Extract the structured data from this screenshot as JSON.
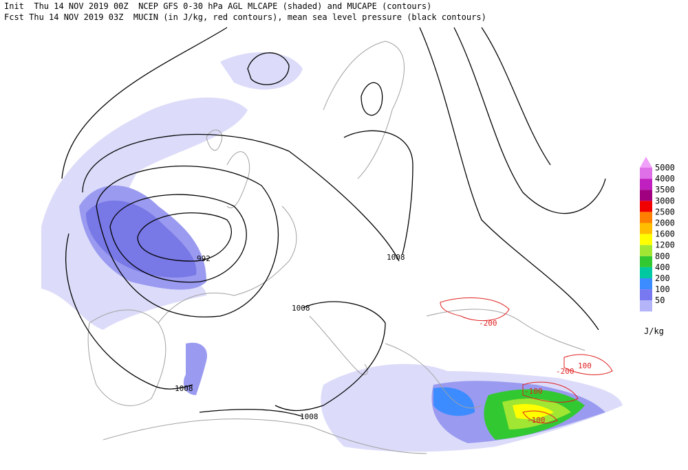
{
  "header": {
    "line1": "Init  Thu 14 NOV 2019 00Z  NCEP GFS 0-30 hPa AGL MLCAPE (shaded) and MUCAPE (contours)",
    "line2": "Fcst Thu 14 NOV 2019 03Z  MUCIN (in J/kg, red contours), mean sea level pressure (black contours)"
  },
  "pressure_labels": [
    "992",
    "1008",
    "1008",
    "1008",
    "1008"
  ],
  "cin_labels": [
    "-200",
    "-200",
    "-100",
    "-100",
    "100"
  ],
  "legend": {
    "unit": "J/kg",
    "items": [
      {
        "label": "5000",
        "color": "#e070e8"
      },
      {
        "label": "4000",
        "color": "#c020c0"
      },
      {
        "label": "3500",
        "color": "#a00080"
      },
      {
        "label": "3000",
        "color": "#f00000"
      },
      {
        "label": "2500",
        "color": "#ff8000"
      },
      {
        "label": "2000",
        "color": "#ffbe00"
      },
      {
        "label": "1600",
        "color": "#ffff00"
      },
      {
        "label": "1200",
        "color": "#a0e632"
      },
      {
        "label": "800",
        "color": "#32c832"
      },
      {
        "label": "400",
        "color": "#00c8a0"
      },
      {
        "label": "200",
        "color": "#3c8cff"
      },
      {
        "label": "100",
        "color": "#7878f0"
      },
      {
        "label": "50",
        "color": "#b4b4f8"
      }
    ]
  }
}
